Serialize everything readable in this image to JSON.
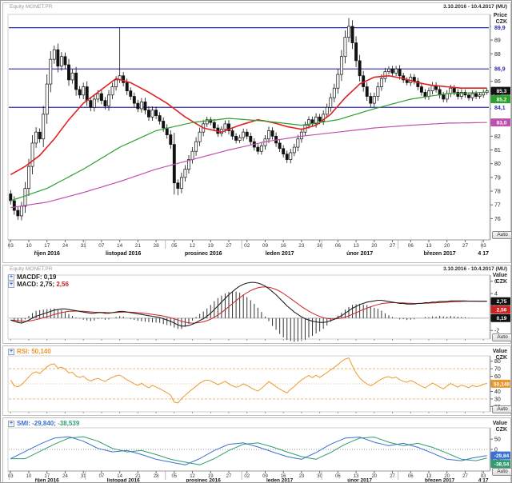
{
  "window": {
    "instrument_header": "Equity MONET.PR",
    "date_range": "3.10.2016 - 10.4.2017 (MU)",
    "auto_button_label": "Auto"
  },
  "panels": {
    "price": {
      "axis_title_line1": "Price",
      "axis_title_line2": "CZK",
      "y_ticks": [
        90,
        89,
        88,
        87,
        86,
        85,
        84,
        83,
        82,
        81,
        80,
        79,
        78,
        77,
        76
      ],
      "hline_color": "#2b2bb4",
      "hlines": [
        {
          "value": 89.9,
          "label": "89,9"
        },
        {
          "value": 86.9,
          "label": "86,9"
        },
        {
          "value": 84.1,
          "label": "84,1"
        }
      ],
      "value_boxes": [
        {
          "value": 85.3,
          "label": "85,3",
          "bg": "#111111"
        },
        {
          "value": 85.2,
          "label": "85,2",
          "bg": "#2ca02c"
        },
        {
          "value": 83.0,
          "label": "83,0",
          "bg": "#c050b0"
        }
      ]
    },
    "macd": {
      "legend_line1": "MACDF: 0,19",
      "legend_line2_prefix": "MACD: 2,75; ",
      "legend_line2_signal": "2,56",
      "axis_title_line1": "Value",
      "axis_title_line2": "CZK",
      "y_ticks": [
        6,
        4,
        2,
        0,
        -2
      ],
      "value_boxes": [
        {
          "value": 2.75,
          "label": "2,75",
          "bg": "#111111"
        },
        {
          "value": 2.56,
          "label": "2,56",
          "bg": "#cc2222"
        },
        {
          "value": 0.19,
          "label": "0,19",
          "bg": "#111111"
        }
      ]
    },
    "rsi": {
      "legend": "RSI: 50,140",
      "axis_title_line1": "Value",
      "axis_title_line2": "CZK",
      "y_ticks": [
        80,
        70,
        60,
        50,
        40,
        30,
        20
      ],
      "bands": [
        70,
        50,
        30
      ],
      "value_boxes": [
        {
          "value": 50.14,
          "label": "50,140",
          "bg": "#e8972c"
        }
      ]
    },
    "smi": {
      "legend_prefix": "SMI: -29,840; ",
      "legend_signal": "-38,539",
      "axis_title_line1": "Value",
      "axis_title_line2": "CZK",
      "y_ticks": [
        50,
        0,
        -50
      ],
      "value_boxes": [
        {
          "value": -29.84,
          "label": "-29,84",
          "bg": "#3b6fd4"
        },
        {
          "value": -38.54,
          "label": "-38,54",
          "bg": "#2f9e6e"
        }
      ]
    }
  },
  "x_axis": {
    "day_tick_indices": [
      0,
      5,
      10,
      15,
      20,
      25,
      30,
      35,
      40,
      45,
      50,
      55,
      60,
      65,
      70,
      75,
      80,
      85,
      90,
      95,
      100,
      105,
      110,
      115,
      120,
      125,
      130
    ],
    "day_tick_labels": [
      "03",
      "10",
      "17",
      "24",
      "31",
      "07",
      "14",
      "21",
      "28",
      "05",
      "12",
      "19",
      "27",
      "02",
      "09",
      "16",
      "23",
      "30",
      "06",
      "13",
      "20",
      "27",
      "06",
      "13",
      "20",
      "27",
      "03"
    ],
    "month_start_indices": [
      0,
      21,
      43,
      64,
      86,
      107,
      130
    ],
    "month_labels": [
      {
        "label": "říjen 2016",
        "index": 10
      },
      {
        "label": "listopad 2016",
        "index": 31
      },
      {
        "label": "prosinec 2016",
        "index": 53
      },
      {
        "label": "leden 2017",
        "index": 74
      },
      {
        "label": "únor 2017",
        "index": 96
      },
      {
        "label": "březen 2017",
        "index": 118
      },
      {
        "label": "4 17",
        "index": 130
      }
    ]
  },
  "chart_data": {
    "type": "candlestick",
    "title": "MONET.PR daily price (CZK) with MACD, RSI and SMI indicator panes, 3.10.2016 - 10.4.2017",
    "price": {
      "unit": "CZK",
      "ylim": [
        74.45,
        90.87
      ],
      "first_open": 77.8,
      "closes": [
        77.3,
        76.6,
        76.2,
        76.9,
        78.2,
        79.8,
        81.5,
        82.3,
        81.8,
        83.6,
        85.8,
        87.6,
        88.3,
        87.1,
        87.8,
        87.2,
        86.1,
        86.6,
        85.4,
        85.0,
        85.6,
        84.6,
        84.1,
        84.7,
        85.1,
        84.6,
        84.2,
        85.0,
        85.6,
        86.1,
        86.4,
        85.9,
        85.3,
        84.9,
        84.4,
        84.0,
        84.5,
        83.9,
        83.4,
        83.9,
        83.5,
        83.1,
        82.6,
        82.1,
        81.4,
        78.6,
        78.2,
        79.0,
        79.6,
        80.3,
        80.9,
        81.6,
        82.3,
        82.9,
        83.2,
        83.0,
        82.6,
        82.2,
        82.5,
        82.9,
        82.4,
        82.0,
        81.7,
        81.9,
        82.3,
        82.0,
        81.6,
        81.2,
        80.9,
        81.3,
        81.8,
        82.4,
        82.0,
        81.5,
        81.1,
        80.7,
        80.3,
        80.8,
        81.2,
        81.8,
        82.3,
        82.8,
        83.2,
        82.9,
        83.4,
        83.1,
        83.6,
        84.1,
        84.8,
        85.5,
        86.5,
        87.8,
        89.2,
        90.0,
        88.8,
        87.5,
        86.4,
        85.6,
        84.9,
        84.4,
        84.9,
        85.6,
        86.2,
        86.7,
        86.9,
        86.6,
        86.9,
        86.4,
        86.1,
        85.9,
        86.3,
        86.0,
        85.6,
        85.2,
        84.9,
        85.3,
        85.7,
        85.4,
        85.0,
        84.7,
        85.1,
        85.5,
        85.2,
        84.9,
        85.2,
        85.0,
        84.8,
        85.1,
        84.9,
        85.0,
        85.2,
        85.3
      ],
      "high_overrides": {
        "12": 88.6,
        "30": 89.9,
        "93": 90.6
      },
      "low_overrides": {
        "2": 75.9,
        "46": 77.7
      },
      "up_color": "#ffffff",
      "down_color": "#111111",
      "moving_averages": [
        {
          "name": "ma-fast",
          "color": "#e02020",
          "keypoints": [
            [
              0,
              79.2
            ],
            [
              4,
              79.8
            ],
            [
              8,
              80.6
            ],
            [
              12,
              81.8
            ],
            [
              16,
              83.2
            ],
            [
              20,
              84.4
            ],
            [
              24,
              85.2
            ],
            [
              29,
              86.2
            ],
            [
              33,
              85.9
            ],
            [
              38,
              85.2
            ],
            [
              43,
              84.4
            ],
            [
              48,
              83.4
            ],
            [
              53,
              82.6
            ],
            [
              58,
              82.3
            ],
            [
              63,
              82.8
            ],
            [
              68,
              83.2
            ],
            [
              72,
              83.0
            ],
            [
              76,
              82.7
            ],
            [
              80,
              82.5
            ],
            [
              84,
              82.8
            ],
            [
              88,
              83.6
            ],
            [
              92,
              84.8
            ],
            [
              96,
              85.8
            ],
            [
              100,
              86.3
            ],
            [
              104,
              86.4
            ],
            [
              108,
              86.2
            ],
            [
              112,
              85.9
            ],
            [
              116,
              85.7
            ],
            [
              120,
              85.6
            ],
            [
              124,
              85.5
            ],
            [
              131,
              85.5
            ]
          ]
        },
        {
          "name": "ma-mid",
          "color": "#2ca02c",
          "keypoints": [
            [
              0,
              77.3
            ],
            [
              10,
              78.2
            ],
            [
              20,
              79.6
            ],
            [
              30,
              81.2
            ],
            [
              40,
              82.4
            ],
            [
              50,
              83.0
            ],
            [
              60,
              83.3
            ],
            [
              70,
              83.1
            ],
            [
              80,
              82.8
            ],
            [
              90,
              83.2
            ],
            [
              100,
              84.0
            ],
            [
              110,
              84.7
            ],
            [
              120,
              85.1
            ],
            [
              131,
              85.2
            ]
          ]
        },
        {
          "name": "ma-slow",
          "color": "#c050b0",
          "keypoints": [
            [
              0,
              76.8
            ],
            [
              10,
              77.2
            ],
            [
              20,
              77.9
            ],
            [
              30,
              78.7
            ],
            [
              40,
              79.6
            ],
            [
              50,
              80.3
            ],
            [
              60,
              81.0
            ],
            [
              70,
              81.6
            ],
            [
              80,
              82.0
            ],
            [
              90,
              82.3
            ],
            [
              100,
              82.6
            ],
            [
              110,
              82.8
            ],
            [
              120,
              82.95
            ],
            [
              131,
              83.0
            ]
          ]
        }
      ]
    },
    "macd": {
      "ylim": [
        -3.4,
        7.0
      ],
      "line_color": "#222222",
      "signal_color": "#cc2222",
      "hist_color": "#333333",
      "signal_ema_period": 9,
      "values": [
        -0.3,
        -0.5,
        -0.7,
        -0.8,
        -0.6,
        -0.3,
        0.0,
        0.3,
        0.5,
        0.7,
        0.9,
        1.1,
        1.3,
        1.4,
        1.5,
        1.5,
        1.4,
        1.3,
        1.2,
        1.1,
        1.0,
        0.9,
        0.8,
        0.8,
        0.9,
        0.9,
        0.8,
        0.8,
        0.9,
        1.0,
        1.1,
        1.1,
        1.0,
        0.9,
        0.8,
        0.7,
        0.6,
        0.5,
        0.4,
        0.3,
        0.2,
        0.1,
        -0.1,
        -0.3,
        -0.5,
        -0.8,
        -1.1,
        -1.3,
        -1.3,
        -1.2,
        -1.0,
        -0.7,
        -0.4,
        -0.1,
        0.3,
        0.8,
        1.4,
        2.0,
        2.6,
        3.2,
        3.8,
        4.3,
        4.8,
        5.2,
        5.5,
        5.7,
        5.8,
        5.8,
        5.7,
        5.5,
        5.2,
        4.8,
        4.3,
        3.8,
        3.2,
        2.6,
        2.0,
        1.5,
        1.0,
        0.6,
        0.2,
        -0.1,
        -0.3,
        -0.5,
        -0.6,
        -0.7,
        -0.7,
        -0.6,
        -0.4,
        -0.2,
        0.1,
        0.4,
        0.8,
        1.2,
        1.6,
        1.9,
        2.2,
        2.4,
        2.6,
        2.7,
        2.8,
        2.9,
        2.9,
        2.8,
        2.7,
        2.6,
        2.5,
        2.4,
        2.4,
        2.3,
        2.3,
        2.3,
        2.4,
        2.4,
        2.5,
        2.5,
        2.6,
        2.6,
        2.7,
        2.7,
        2.7,
        2.8,
        2.8,
        2.8,
        2.8,
        2.8,
        2.77,
        2.76,
        2.76,
        2.75,
        2.75,
        2.75
      ]
    },
    "rsi": {
      "ylim": [
        13,
        87
      ],
      "period": 14,
      "color": "#eb9a2d",
      "bands": [
        70,
        50,
        30
      ]
    },
    "smi": {
      "ylim": [
        -105,
        105
      ],
      "color": "#3b6fd4",
      "signal_color": "#2f9e6e",
      "signal_lag": 4,
      "keypoints": [
        [
          0,
          -45
        ],
        [
          4,
          -10
        ],
        [
          8,
          25
        ],
        [
          12,
          55
        ],
        [
          16,
          62
        ],
        [
          20,
          40
        ],
        [
          24,
          5
        ],
        [
          28,
          -12
        ],
        [
          32,
          -5
        ],
        [
          36,
          -25
        ],
        [
          40,
          -48
        ],
        [
          44,
          -62
        ],
        [
          48,
          -75
        ],
        [
          52,
          -45
        ],
        [
          56,
          -5
        ],
        [
          60,
          25
        ],
        [
          64,
          32
        ],
        [
          68,
          12
        ],
        [
          72,
          -12
        ],
        [
          76,
          -35
        ],
        [
          80,
          -48
        ],
        [
          84,
          -15
        ],
        [
          88,
          25
        ],
        [
          92,
          55
        ],
        [
          96,
          60
        ],
        [
          100,
          35
        ],
        [
          104,
          18
        ],
        [
          108,
          30
        ],
        [
          112,
          10
        ],
        [
          116,
          -18
        ],
        [
          120,
          -48
        ],
        [
          124,
          -55
        ],
        [
          127,
          -42
        ],
        [
          131,
          -29.8
        ]
      ]
    }
  }
}
